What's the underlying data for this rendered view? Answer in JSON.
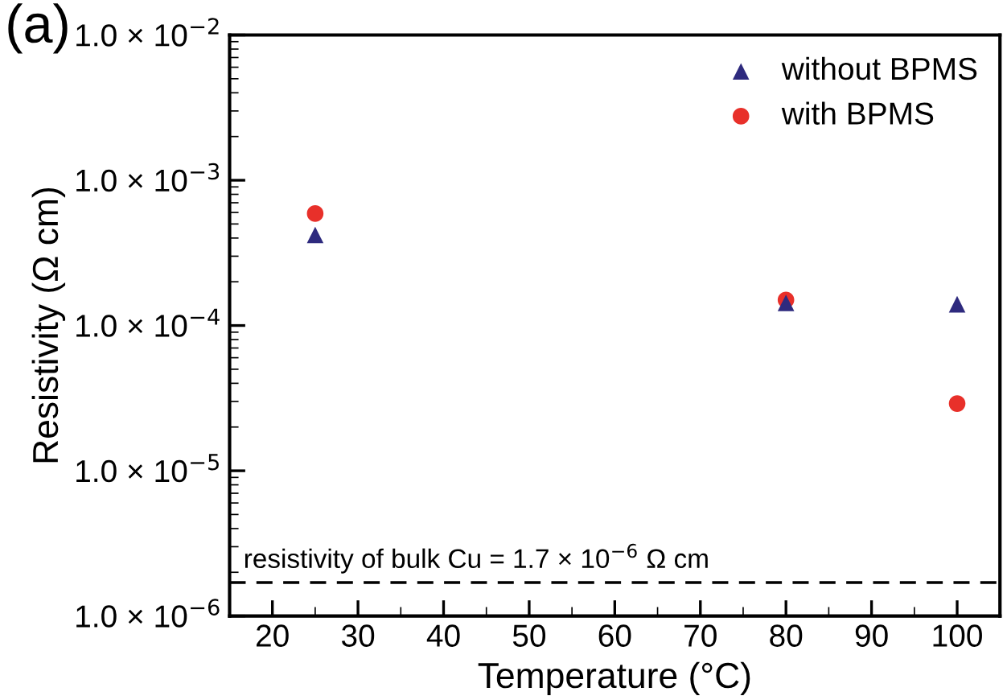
{
  "chart_data": {
    "type": "scatter",
    "xlabel": "Temperature (°C)",
    "ylabel": "Resistivity (Ω cm)",
    "log": "y",
    "x": [
      25,
      80,
      100
    ],
    "series": [
      {
        "name": "without BPMS",
        "color": "#2e2a7e",
        "marker": "triangle",
        "values": [
          0.00042,
          0.000143,
          0.00014
        ]
      },
      {
        "name": "with BPMS",
        "color": "#e8302a",
        "marker": "circle",
        "values": [
          0.00059,
          0.00015,
          2.9e-05
        ]
      }
    ],
    "xlim": [
      15,
      105
    ],
    "xticks": [
      20,
      30,
      40,
      50,
      60,
      70,
      80,
      90,
      100
    ],
    "ylim": [
      1e-06,
      0.01
    ],
    "yticks": [
      {
        "value": 1e-06,
        "label": "1.0 × 10$^{−6}$"
      },
      {
        "value": 1e-05,
        "label": "1.0 × 10$^{−5}$"
      },
      {
        "value": 0.0001,
        "label": "1.0 × 10$^{−4}$"
      },
      {
        "value": 0.001,
        "label": "1.0 × 10$^{−3}$"
      },
      {
        "value": 0.01,
        "label": "1.0 × 10$^{−2}$"
      }
    ],
    "ref_lines": [
      {
        "axis": "y",
        "value": 1.7e-06,
        "label": "resistivity of bulk Cu = 1.7 × 10$^{−6}$ Ω cm",
        "color": "#000000",
        "line_style": "dashed"
      }
    ],
    "annotations": [
      "(a)"
    ],
    "legend": "top right",
    "grid": false
  }
}
